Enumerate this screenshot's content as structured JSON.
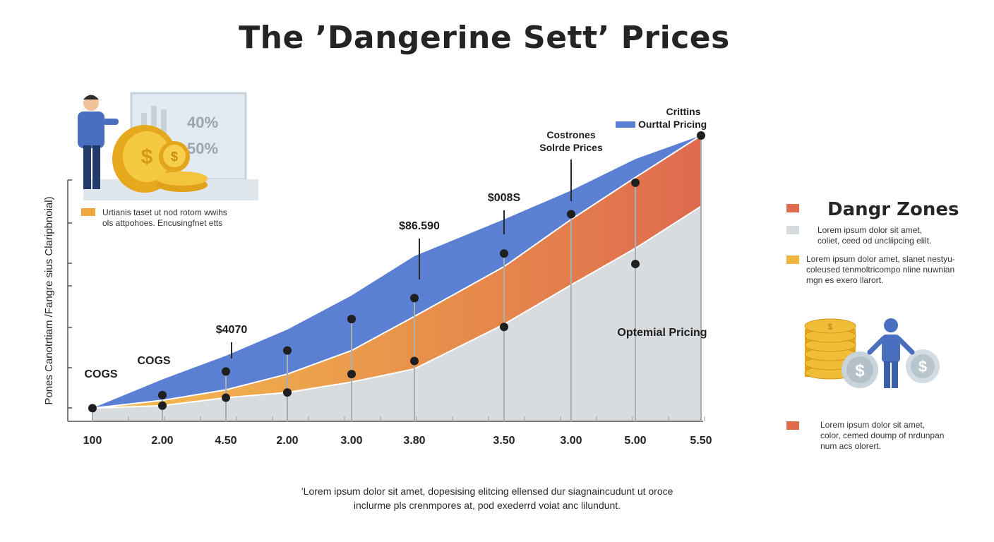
{
  "title": "The ’Dangerine Sett’ Prices",
  "chart_data": {
    "type": "area",
    "y_axis_label": "Pones  Canotrtiam /Fangre sius  Claripbnoial)",
    "x_tick_labels": [
      "100",
      "2.00",
      "4.50",
      "2.00",
      "3.00",
      "3.80",
      "3.50",
      "3.00",
      "5.00",
      "5.50"
    ],
    "series": [
      {
        "name": "Ourttal Pricing",
        "color": "#5b7fd3",
        "values": [
          0.05,
          0.16,
          0.25,
          0.35,
          0.48,
          0.63,
          0.77,
          0.88,
          1.0,
          1.09
        ]
      },
      {
        "name": "",
        "color": "#e8a04c",
        "values": [
          0.05,
          0.08,
          0.12,
          0.18,
          0.27,
          0.4,
          0.59,
          0.77,
          0.93,
          1.09
        ]
      },
      {
        "name": "",
        "color": "#d9dcdf",
        "values": [
          0.05,
          0.06,
          0.09,
          0.11,
          0.15,
          0.2,
          0.37,
          0.52,
          0.66,
          0.82
        ]
      }
    ],
    "points": [
      {
        "i": 0,
        "top": 0.05,
        "low": null
      },
      {
        "i": 1,
        "top": 0.1,
        "low": 0.06
      },
      {
        "i": 2,
        "top": 0.19,
        "low": 0.09
      },
      {
        "i": 3,
        "top": 0.27,
        "low": 0.11
      },
      {
        "i": 4,
        "top": 0.39,
        "low": 0.18
      },
      {
        "i": 5,
        "top": 0.47,
        "low": 0.23
      },
      {
        "i": 6,
        "top": 0.64,
        "low": 0.36
      },
      {
        "i": 7,
        "top": 0.79,
        "low": null
      },
      {
        "i": 8,
        "top": 0.91,
        "low": 0.6
      },
      {
        "i": 9,
        "top": 1.09,
        "low": null
      }
    ],
    "annotations": [
      {
        "text": "COGS",
        "i": 0,
        "v": 0.05
      },
      {
        "text": "COGS",
        "i": 1,
        "v": 0.1
      },
      {
        "text": "$4070",
        "i": 2,
        "v": 0.19
      },
      {
        "text": "$86.590",
        "i": 5,
        "v": 0.63
      },
      {
        "text": "$008S",
        "i": 6,
        "v": 0.77
      },
      {
        "text": "Costrones\nSolrde Prices",
        "i": 7,
        "v": 0.88
      },
      {
        "text": "Crittins",
        "i": 9,
        "v": 1.09
      },
      {
        "text": "Optemial Pricing",
        "i": 8,
        "v": 0.35
      }
    ],
    "legend": [
      {
        "label": "Ourttal Pricing",
        "color": "#5b7fd3"
      }
    ]
  },
  "illustration": {
    "chart_percent_1": "40%",
    "chart_percent_2": "50%"
  },
  "left_note": {
    "color": "#f0a83c",
    "line1": "Urtianis taset ut nod rotom wwihs",
    "line2": "ols attpohoes. Encusingfnet etts"
  },
  "legend_panel": {
    "title": "Dangr Zones",
    "items": [
      {
        "color": "#e06c4f",
        "text": ""
      },
      {
        "color": "#d4dade",
        "text": "Lorem ipsum dolor sit amet,\ncoliet, ceed od uncliipcing elilt."
      },
      {
        "color": "#f2b441",
        "text": "Lorem ipsum dolor amet, slanet nestyu-\ncoleused tenmoltricompo nline nuwnian\nmgn es exero llarort."
      },
      {
        "color": "#e06c4f",
        "text": "Lorem ipsum dolor sit amet,\ncolor, cemed doump of nrdunpan\nnum acs olorert."
      }
    ]
  },
  "footnote": {
    "line1": "’Lorem ipsum dolor sit amet, dopesising elitcing ellensed dur siagnaincudunt ut oroce",
    "line2": "inclurme pls crenmpores at, pod exederrd voiat anc lilundunt."
  }
}
